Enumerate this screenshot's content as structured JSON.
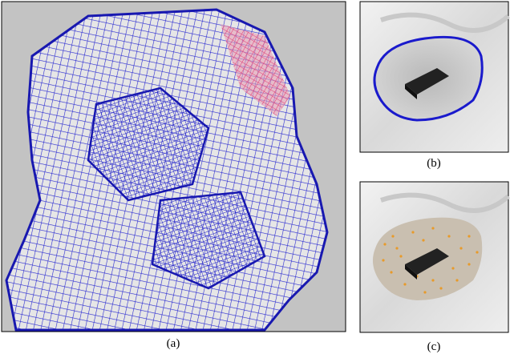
{
  "figure": {
    "panels": [
      {
        "caption": "(a)"
      },
      {
        "caption": "(b)"
      },
      {
        "caption": "(c)"
      }
    ]
  }
}
